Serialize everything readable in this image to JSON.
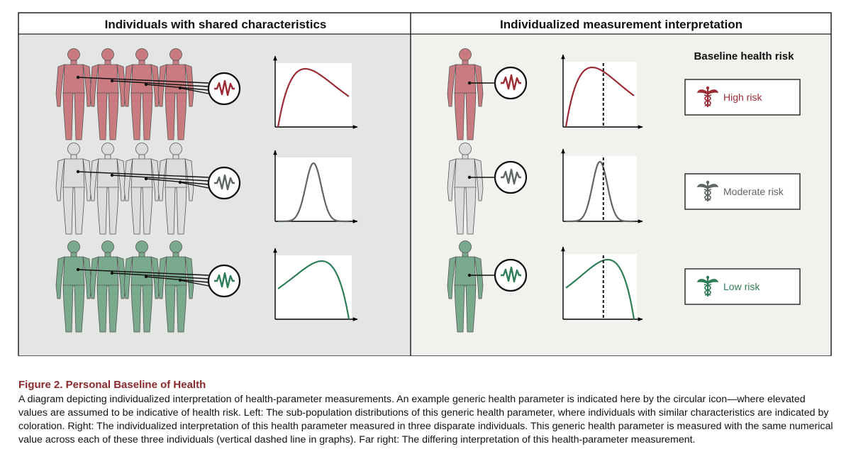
{
  "panels": {
    "left_title": "Individuals with shared characteristics",
    "right_title": "Individualized measurement interpretation"
  },
  "risk_header": "Baseline health risk",
  "risk_levels": [
    {
      "label": "High risk",
      "color": "#9b2c35",
      "body_color": "#c97b80"
    },
    {
      "label": "Moderate risk",
      "color": "#5f6662",
      "body_color": "#dcdcdc"
    },
    {
      "label": "Low risk",
      "color": "#2f7d57",
      "body_color": "#79aa8e"
    }
  ],
  "caption": {
    "title": "Figure 2. Personal Baseline of Health",
    "body": "A diagram depicting individualized interpretation of health-parameter measurements. An example generic health parameter is indicated here by the circular icon—where elevated values are assumed to be indicative of health risk. Left: The sub-population distributions of this generic health parameter, where individuals with similar characteristics are indicated by coloration. Right: The individualized interpretation of this health parameter measured in three disparate individuals. This generic health parameter is measured with the same numerical value across each of these three individuals (vertical dashed line in graphs). Far right: The differing interpretation of this health-parameter measurement."
  },
  "distributions": [
    {
      "shape": "right-skewed",
      "measurement_position": 0.55
    },
    {
      "shape": "symmetric",
      "measurement_position": 0.55
    },
    {
      "shape": "left-skewed",
      "measurement_position": 0.55
    }
  ],
  "icons": [
    "human-figure-icon",
    "pulse-waveform-icon",
    "caduceus-icon"
  ]
}
